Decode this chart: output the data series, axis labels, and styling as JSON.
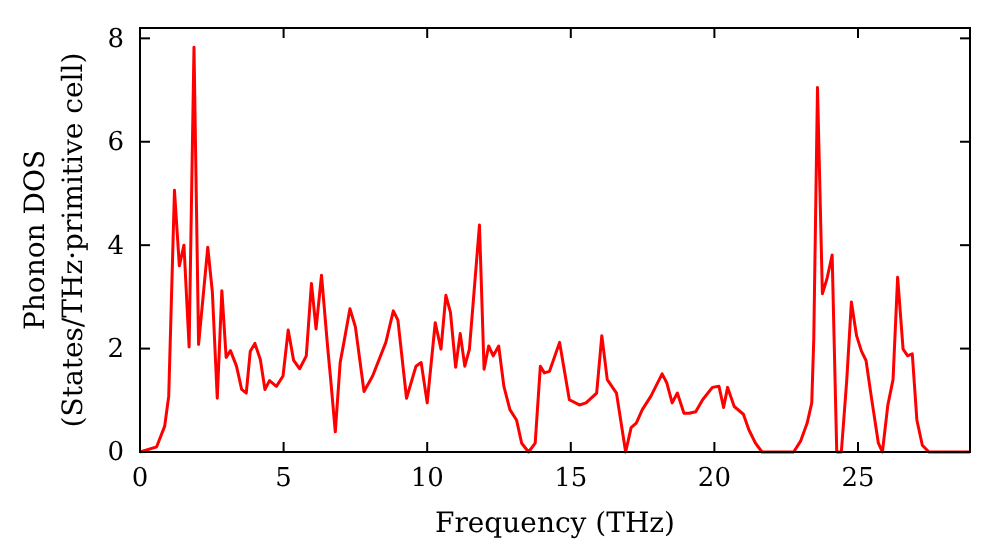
{
  "chart_data": {
    "type": "line",
    "xlabel": "Frequency (THz)",
    "ylabel": "Phonon DOS\n(States/THz·primitive cell)",
    "xlim": [
      0,
      28.9
    ],
    "ylim": [
      0,
      8.2
    ],
    "xticks": [
      0,
      5,
      10,
      15,
      20,
      25
    ],
    "yticks": [
      0,
      2,
      4,
      6,
      8
    ],
    "grid": false,
    "marker": "none",
    "line_style": "solid",
    "x": [
      0,
      0.58,
      0.86,
      1.0,
      1.2,
      1.37,
      1.53,
      1.71,
      1.88,
      2.04,
      2.36,
      2.52,
      2.69,
      2.85,
      3.0,
      3.15,
      3.36,
      3.54,
      3.7,
      3.84,
      4.0,
      4.19,
      4.35,
      4.51,
      4.75,
      4.98,
      5.16,
      5.35,
      5.56,
      5.79,
      5.97,
      6.13,
      6.32,
      6.53,
      6.64,
      6.8,
      6.97,
      7.1,
      7.31,
      7.5,
      7.8,
      8.1,
      8.56,
      8.82,
      8.98,
      9.28,
      9.61,
      9.79,
      10.0,
      10.28,
      10.48,
      10.65,
      10.81,
      10.99,
      11.15,
      11.31,
      11.47,
      11.82,
      11.98,
      12.14,
      12.3,
      12.49,
      12.67,
      12.88,
      13.11,
      13.29,
      13.53,
      13.76,
      13.94,
      14.08,
      14.26,
      14.61,
      14.95,
      15.3,
      15.53,
      15.9,
      16.08,
      16.27,
      16.59,
      16.91,
      17.1,
      17.28,
      17.49,
      17.79,
      18.18,
      18.34,
      18.53,
      18.71,
      18.94,
      19.12,
      19.35,
      19.59,
      19.93,
      20.16,
      20.32,
      20.46,
      20.69,
      21.01,
      21.2,
      21.43,
      21.66,
      22.76,
      23.0,
      23.23,
      23.39,
      23.46,
      23.59,
      23.76,
      23.92,
      24.1,
      24.26,
      24.42,
      24.61,
      24.77,
      24.95,
      25.12,
      25.28,
      25.46,
      25.71,
      25.85,
      26.04,
      26.22,
      26.38,
      26.57,
      26.73,
      26.89,
      27.05,
      27.24,
      27.47,
      28.9
    ],
    "series": [
      {
        "color": "#ff0000",
        "values": [
          0,
          0.1,
          0.5,
          1.08,
          5.06,
          3.6,
          4.0,
          2.03,
          7.83,
          2.08,
          3.96,
          3.09,
          1.04,
          3.12,
          1.83,
          1.96,
          1.66,
          1.21,
          1.14,
          1.95,
          2.1,
          1.79,
          1.21,
          1.38,
          1.27,
          1.47,
          2.36,
          1.77,
          1.61,
          1.86,
          3.26,
          2.38,
          3.42,
          2.05,
          1.4,
          0.39,
          1.73,
          2.12,
          2.77,
          2.42,
          1.17,
          1.47,
          2.12,
          2.73,
          2.55,
          1.04,
          1.66,
          1.73,
          0.95,
          2.5,
          1.99,
          3.03,
          2.7,
          1.64,
          2.29,
          1.66,
          1.99,
          4.39,
          1.6,
          2.05,
          1.86,
          2.05,
          1.27,
          0.82,
          0.62,
          0.17,
          0,
          0.17,
          1.66,
          1.53,
          1.56,
          2.12,
          1.01,
          0.91,
          0.95,
          1.14,
          2.25,
          1.4,
          1.14,
          0,
          0.47,
          0.56,
          0.82,
          1.08,
          1.51,
          1.34,
          0.95,
          1.14,
          0.75,
          0.75,
          0.78,
          1.01,
          1.25,
          1.27,
          0.86,
          1.25,
          0.88,
          0.73,
          0.43,
          0.17,
          0,
          0,
          0.21,
          0.56,
          0.95,
          2.18,
          7.05,
          3.06,
          3.35,
          3.81,
          0,
          0,
          1.4,
          2.9,
          2.25,
          1.95,
          1.77,
          1.08,
          0.17,
          0,
          0.91,
          1.4,
          3.38,
          1.99,
          1.86,
          1.9,
          0.62,
          0.13,
          0,
          0
        ]
      }
    ]
  }
}
